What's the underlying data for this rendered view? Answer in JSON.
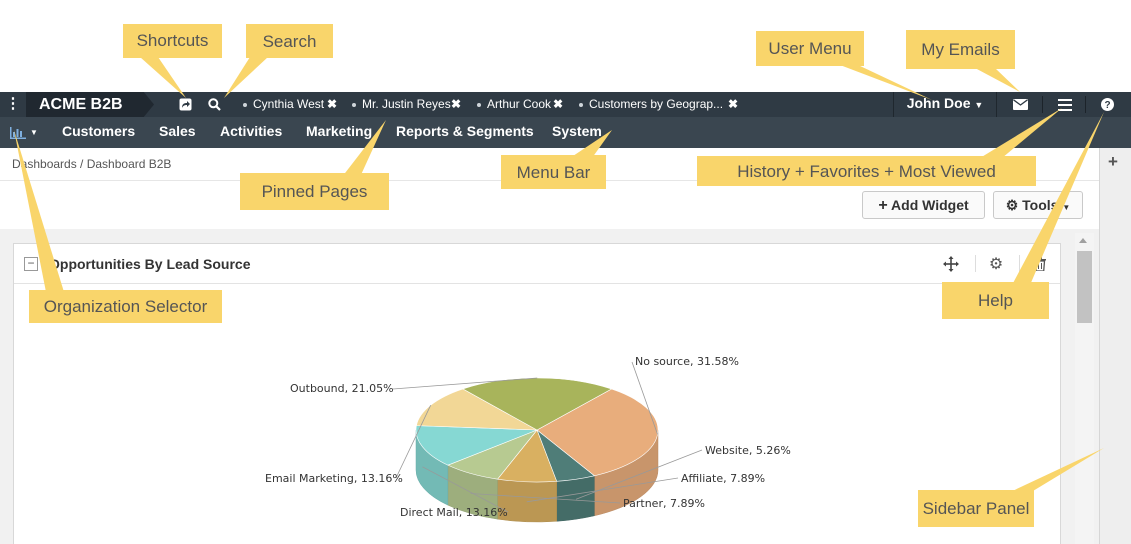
{
  "header": {
    "brand": "ACME B2B",
    "pinned_tabs": [
      {
        "label": "Cynthia West"
      },
      {
        "label": "Mr. Justin Reyes"
      },
      {
        "label": "Arthur Cook"
      },
      {
        "label": "Customers by Geograp..."
      }
    ],
    "user_name": "John Doe"
  },
  "menu": {
    "items": [
      "Customers",
      "Sales",
      "Activities",
      "Marketing",
      "Reports & Segments",
      "System"
    ]
  },
  "breadcrumb": "Dashboards / Dashboard B2B",
  "toolbar": {
    "add_widget": "Add Widget",
    "tools": "Tools"
  },
  "widget": {
    "title": "Opportunities By Lead Source"
  },
  "chart_data": {
    "type": "pie",
    "slices": [
      {
        "label": "No source, 31.58%",
        "value": 31.58,
        "color": "#e8ad7c"
      },
      {
        "label": "Website, 5.26%",
        "value": 5.26,
        "color": "#4f7d78"
      },
      {
        "label": "Affiliate, 7.89%",
        "value": 7.89,
        "color": "#d9b061"
      },
      {
        "label": "Partner, 7.89%",
        "value": 7.89,
        "color": "#b7ca91"
      },
      {
        "label": "Direct Mail, 13.16%",
        "value": 13.16,
        "color": "#86d8d3"
      },
      {
        "label": "Email Marketing, 13.16%",
        "value": 13.16,
        "color": "#f2d796"
      },
      {
        "label": "Outbound, 21.05%",
        "value": 21.05,
        "color": "#a8b45b"
      }
    ]
  },
  "callouts": {
    "shortcuts": "Shortcuts",
    "search": "Search",
    "user_menu": "User Menu",
    "my_emails": "My Emails",
    "pinned_pages": "Pinned Pages",
    "menu_bar": "Menu Bar",
    "history": "History + Favorites + Most Viewed",
    "organization_selector": "Organization Selector",
    "help": "Help",
    "sidebar_panel": "Sidebar Panel"
  }
}
